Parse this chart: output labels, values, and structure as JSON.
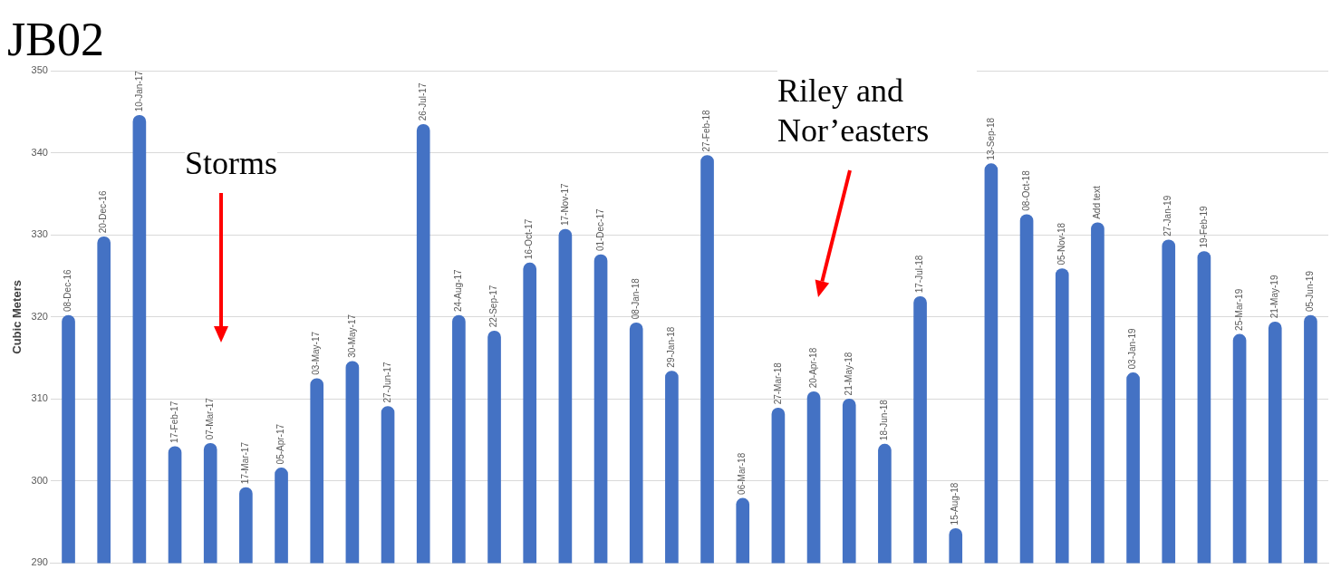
{
  "chart_data": {
    "type": "bar",
    "title": "JB02",
    "ylabel": "Cubic Meters",
    "categories": [
      null,
      null,
      null,
      null,
      null,
      null,
      null,
      null,
      null,
      null,
      null,
      null,
      null,
      null,
      null,
      null,
      null,
      null,
      null,
      null,
      null,
      null,
      null,
      null,
      null,
      null,
      null,
      null,
      null,
      null,
      null,
      null,
      null,
      null,
      null,
      null
    ],
    "values": [
      320.2,
      329.8,
      344.6,
      304.2,
      304.6,
      299.2,
      301.6,
      312.5,
      314.6,
      309.1,
      343.5,
      320.2,
      318.3,
      326.6,
      330.7,
      327.6,
      319.3,
      313.4,
      339.7,
      297.9,
      308.9,
      310.9,
      310,
      304.5,
      322.5,
      294.2,
      338.7,
      332.5,
      325.9,
      331.5,
      313.2,
      329.4,
      328,
      317.9,
      319.4,
      320.2
    ],
    "value_labels": [
      "08-Dec-16",
      "20-Dec-16",
      "10-Jan-17",
      "17-Feb-17",
      "07-Mar-17",
      "17-Mar-17",
      "05-Apr-17",
      "03-May-17",
      "30-May-17",
      "27-Jun-17",
      "26-Jul-17",
      "24-Aug-17",
      "22-Sep-17",
      "16-Oct-17",
      "17-Nov-17",
      "01-Dec-17",
      "08-Jan-18",
      "29-Jan-18",
      "27-Feb-18",
      "06-Mar-18",
      "27-Mar-18",
      "20-Apr-18",
      "21-May-18",
      "18-Jun-18",
      "17-Jul-18",
      "15-Aug-18",
      "13-Sep-18",
      "08-Oct-18",
      "05-Nov-18",
      "Add text",
      "03-Jan-19",
      "27-Jan-19",
      "19-Feb-19",
      "25-Mar-19",
      "21-May-19",
      "05-Jun-19"
    ],
    "color": "#4472c4",
    "ylim": [
      290,
      350
    ],
    "yticks": [
      290,
      300,
      310,
      320,
      330,
      340,
      350
    ],
    "grid": "y",
    "tick_labels": "y",
    "annotations": [
      "Storms",
      "Riley and Nor’easters"
    ]
  }
}
